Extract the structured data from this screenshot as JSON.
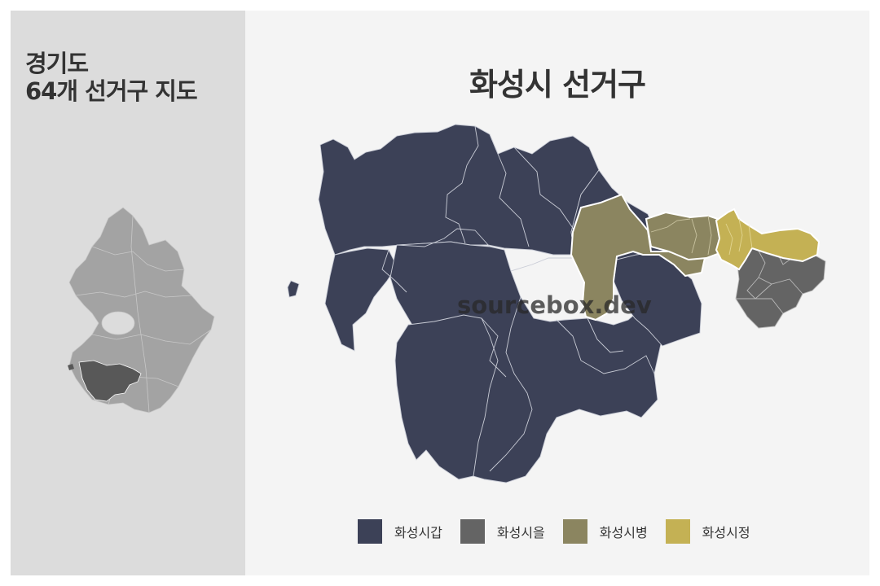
{
  "left_panel": {
    "title_line1": "경기도",
    "title_line2": "64개 선거구 지도"
  },
  "main": {
    "title": "화성시 선거구",
    "watermark": "sourcebox.dev"
  },
  "legend": [
    {
      "label": "화성시갑",
      "color": "#3c4157"
    },
    {
      "label": "화성시을",
      "color": "#646464"
    },
    {
      "label": "화성시병",
      "color": "#8b8560"
    },
    {
      "label": "화성시정",
      "color": "#c4b154"
    }
  ],
  "colors": {
    "left_panel_bg": "#dcdcdc",
    "right_panel_bg": "#f4f4f4",
    "province_gray": "#a3a3a3",
    "highlight_dark": "#5a5a5a"
  }
}
